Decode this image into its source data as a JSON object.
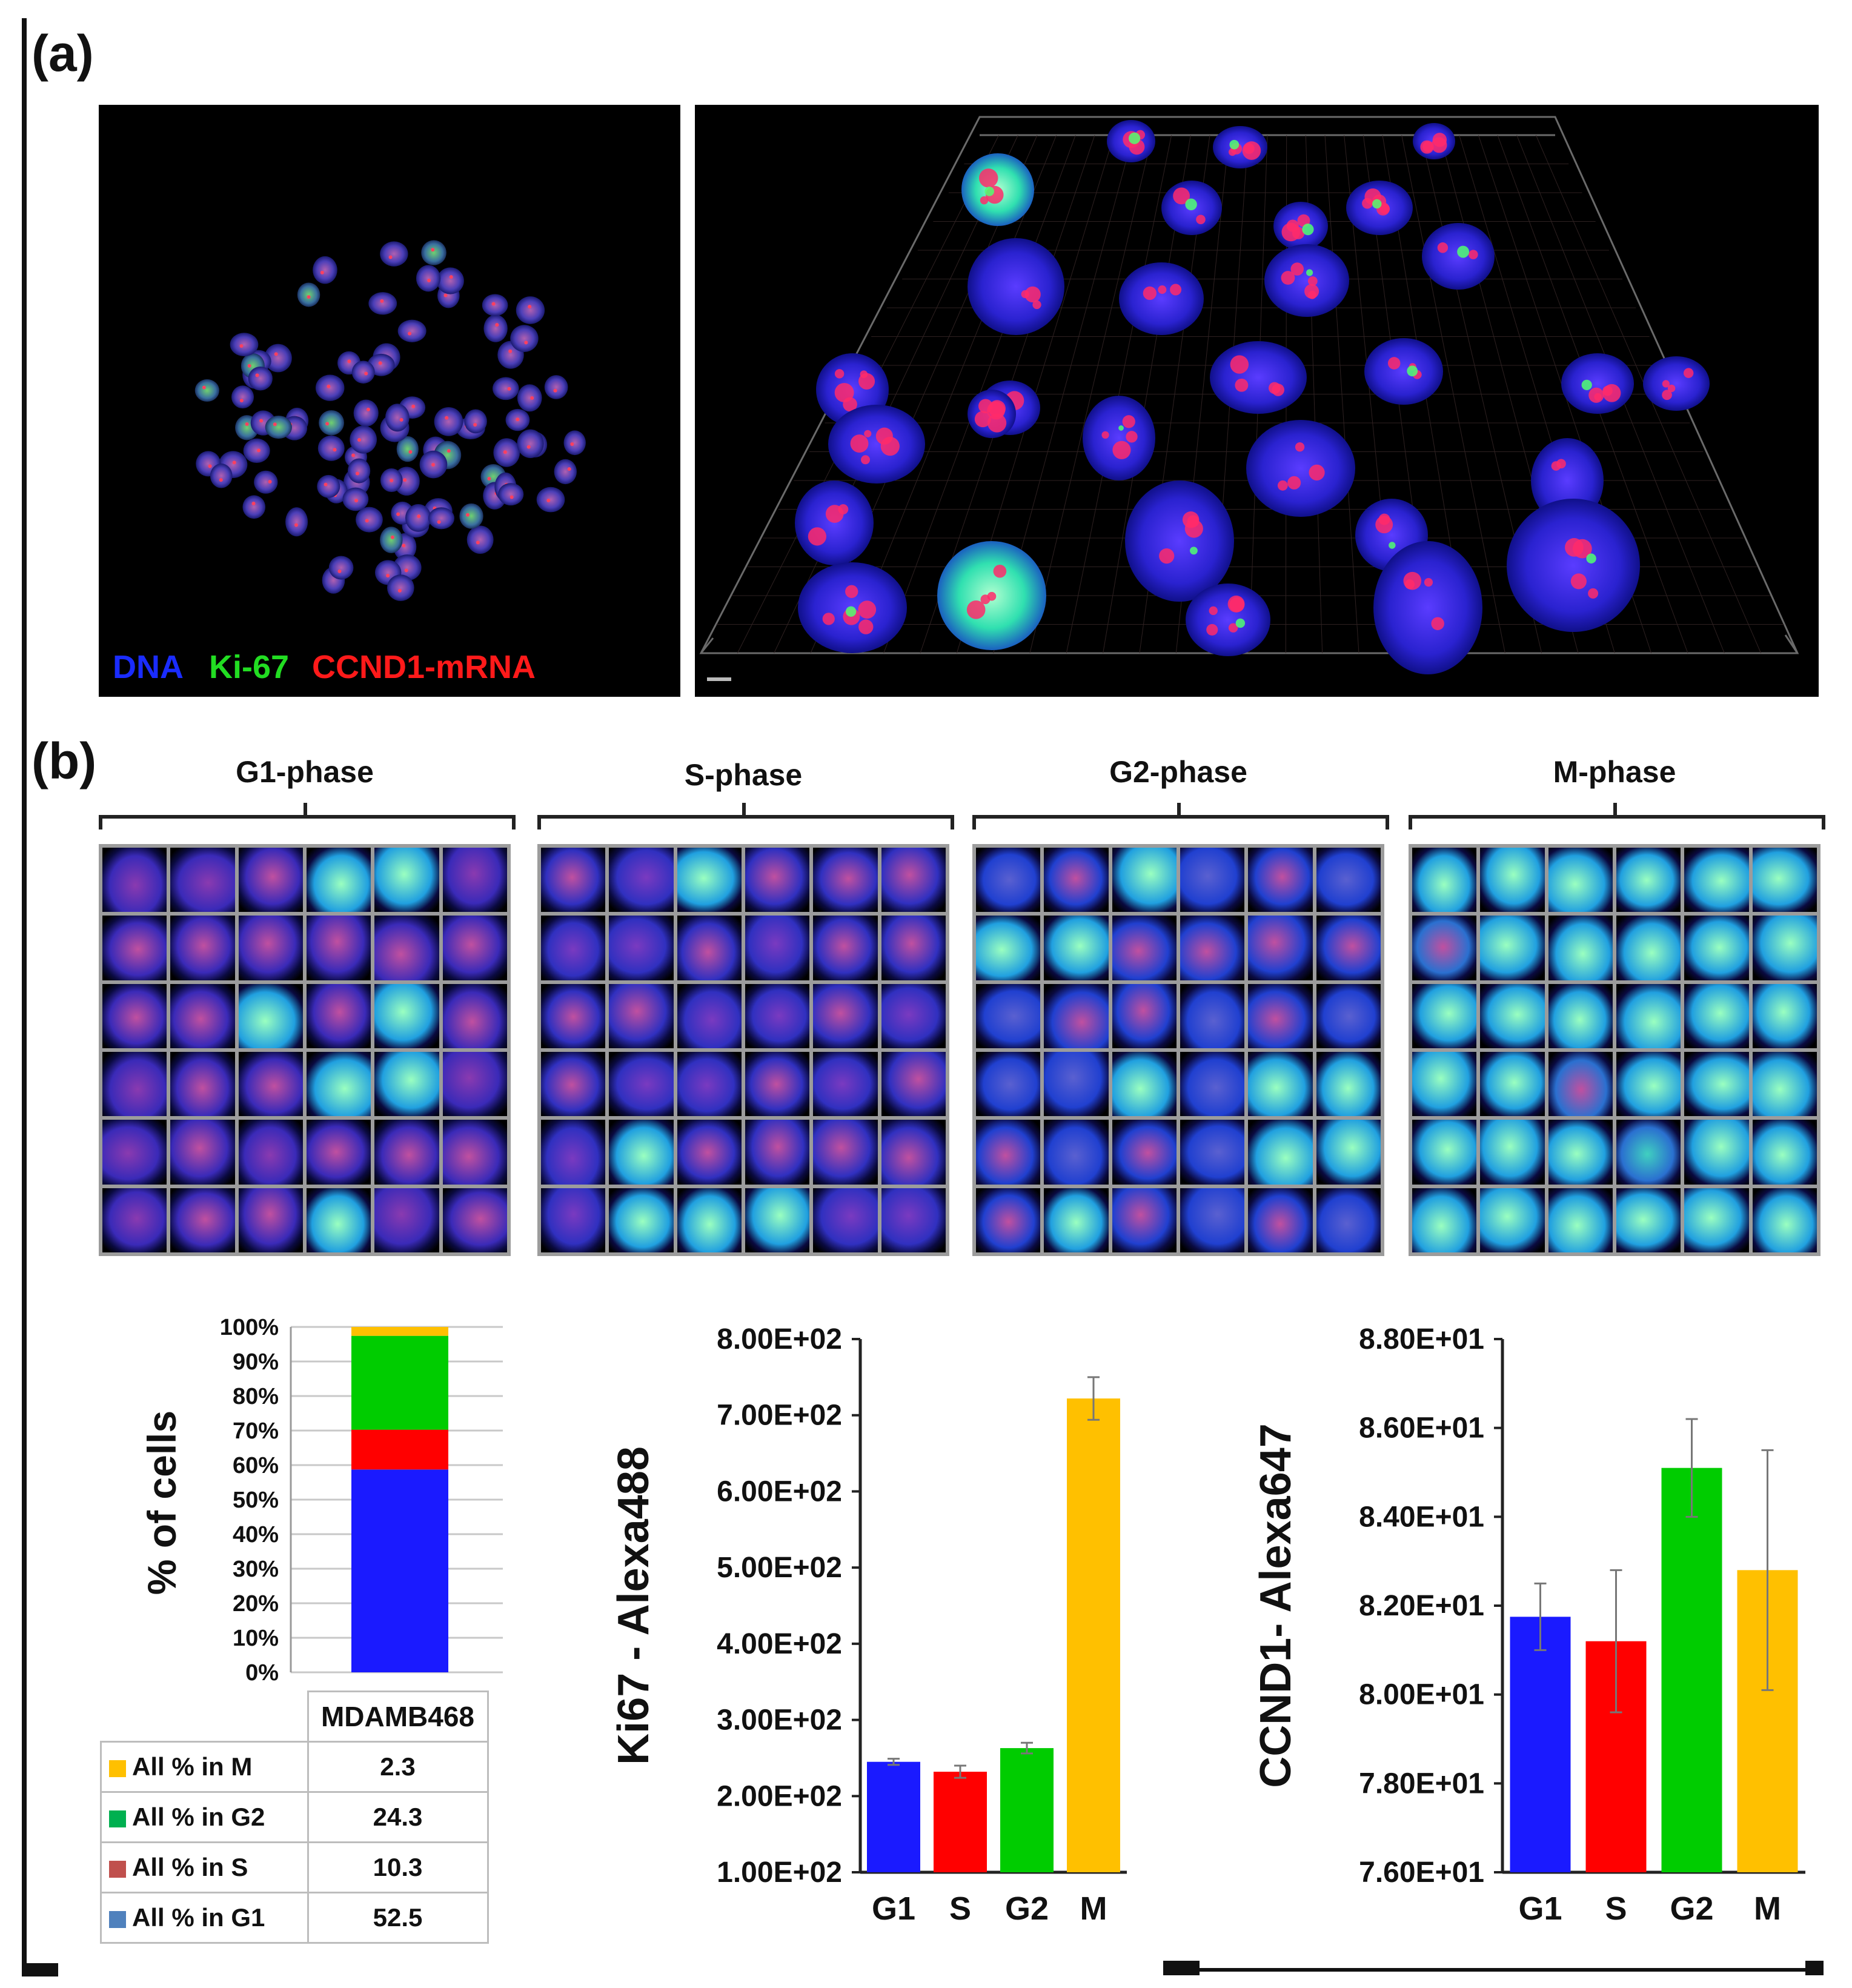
{
  "panels": {
    "a_label": "(a)",
    "b_label": "(b)"
  },
  "legend": {
    "dna": "DNA",
    "ki67": "Ki-67",
    "ccnd1": "CCND1-mRNA",
    "colors": {
      "dna": "#1a2cff",
      "ki67": "#22dd22",
      "ccnd1": "#ff1a1a"
    }
  },
  "phases": [
    "G1-phase",
    "S-phase",
    "G2-phase",
    "M-phase"
  ],
  "stack_chart": {
    "ylabel": "% of cells",
    "yticks": [
      "100%",
      "90%",
      "80%",
      "70%",
      "60%",
      "50%",
      "40%",
      "30%",
      "20%",
      "10%",
      "0%"
    ],
    "category": "MDAMB468",
    "rows": [
      {
        "label": "All %  in M",
        "value": "2.3",
        "color": "#ffc000"
      },
      {
        "label": "All %  in G2",
        "value": "24.3",
        "color": "#00b050"
      },
      {
        "label": "All %  in S",
        "value": "10.3",
        "color": "#c0504d"
      },
      {
        "label": "All %  in G1",
        "value": "52.5",
        "color": "#4f81bd"
      }
    ]
  },
  "chart_data": [
    {
      "type": "bar",
      "stacked": true,
      "ylabel": "% of cells",
      "categories": [
        "MDAMB468"
      ],
      "ylim": [
        0,
        100
      ],
      "series": [
        {
          "name": "All %  in G1",
          "values": [
            52.5
          ],
          "color": "#1a1aff"
        },
        {
          "name": "All %  in S",
          "values": [
            10.3
          ],
          "color": "#ff0000"
        },
        {
          "name": "All %  in G2",
          "values": [
            24.3
          ],
          "color": "#00cc00"
        },
        {
          "name": "All %  in M",
          "values": [
            2.3
          ],
          "color": "#ffc000"
        }
      ]
    },
    {
      "type": "bar",
      "ylabel": "Ki67 - Alexa488",
      "categories": [
        "G1",
        "S",
        "G2",
        "M"
      ],
      "values": [
        245,
        232,
        263,
        722
      ],
      "errors": [
        4,
        8,
        7,
        28
      ],
      "colors": [
        "#1a1aff",
        "#ff0000",
        "#00cc00",
        "#ffc000"
      ],
      "ylim": [
        100,
        800
      ],
      "yticks": [
        "1.00E+02",
        "2.00E+02",
        "3.00E+02",
        "4.00E+02",
        "5.00E+02",
        "6.00E+02",
        "7.00E+02",
        "8.00E+02"
      ]
    },
    {
      "type": "bar",
      "ylabel": "CCND1- Alexa647",
      "categories": [
        "G1",
        "S",
        "G2",
        "M"
      ],
      "values": [
        81.75,
        81.2,
        85.1,
        82.8
      ],
      "errors": [
        0.75,
        1.6,
        1.1,
        2.7
      ],
      "colors": [
        "#1a1aff",
        "#ff0000",
        "#00cc00",
        "#ffc000"
      ],
      "ylim": [
        76,
        88
      ],
      "yticks": [
        "7.60E+01",
        "7.80E+01",
        "8.00E+01",
        "8.20E+01",
        "8.40E+01",
        "8.60E+01",
        "8.80E+01"
      ]
    }
  ]
}
